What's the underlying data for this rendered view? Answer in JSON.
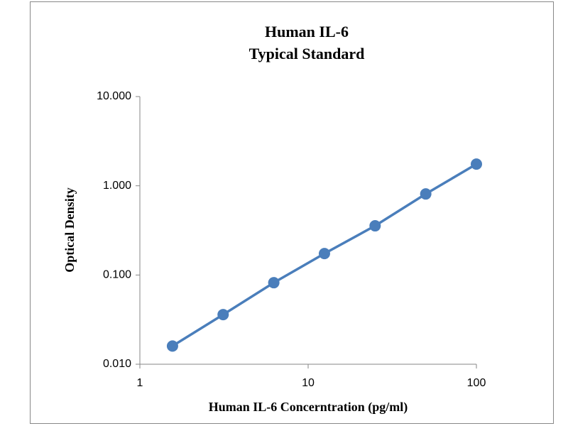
{
  "chart_data": {
    "type": "line",
    "title": "Human IL-6",
    "subtitle": "Typical Standard",
    "x_label": "Human IL-6 Concerntration (pg/ml)",
    "y_label": "Optical Density",
    "x": [
      1.5625,
      3.125,
      6.25,
      12.5,
      25,
      50,
      100
    ],
    "series": [
      {
        "name": "Standard",
        "color": "#4a7ebb",
        "values": [
          0.016,
          0.036,
          0.082,
          0.174,
          0.356,
          0.81,
          1.75
        ]
      }
    ],
    "xlim": [
      1,
      100
    ],
    "xticks": [
      1,
      10,
      100
    ],
    "xlog": true,
    "ylim": [
      0.01,
      10
    ],
    "yticks": [
      {
        "value": 0.01,
        "label": "0.010"
      },
      {
        "value": 0.1,
        "label": "0.100"
      },
      {
        "value": 1,
        "label": "1.000"
      },
      {
        "value": 10,
        "label": "10.000"
      }
    ],
    "ylog": true,
    "grid": false
  }
}
